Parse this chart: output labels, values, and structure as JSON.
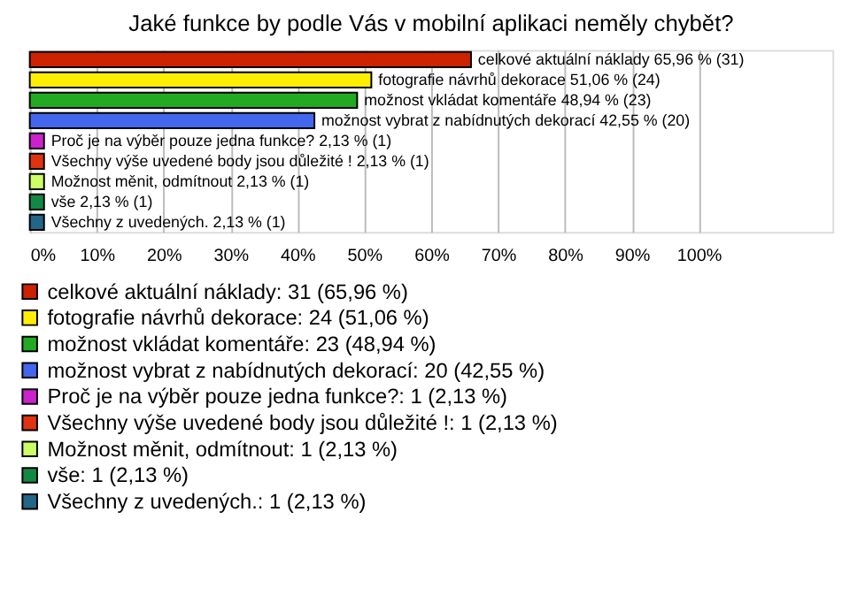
{
  "chart_data": {
    "type": "bar",
    "orientation": "horizontal",
    "title": "Jaké funkce by podle Vás v mobilní aplikaci neměly chybět?",
    "categories": [
      null,
      null,
      null,
      null,
      null,
      null,
      null,
      null,
      null
    ],
    "series": [
      {
        "name": "celkové aktuální náklady: 31 (65,96 %)",
        "color": "#cc2200",
        "values": [
          65.96,
          null,
          null,
          null,
          null,
          null,
          null,
          null,
          null
        ],
        "value_labels": [
          "celkové aktuální náklady 65,96 % (31)",
          null,
          null,
          null,
          null,
          null,
          null,
          null,
          null
        ]
      },
      {
        "name": "fotografie návrhů dekorace: 24 (51,06 %)",
        "color": "#ffee00",
        "values": [
          null,
          51.06,
          null,
          null,
          null,
          null,
          null,
          null,
          null
        ],
        "value_labels": [
          null,
          "fotografie návrhů dekorace 51,06 % (24)",
          null,
          null,
          null,
          null,
          null,
          null,
          null
        ]
      },
      {
        "name": "možnost vkládat komentáře: 23 (48,94 %)",
        "color": "#22aa22",
        "values": [
          null,
          null,
          48.94,
          null,
          null,
          null,
          null,
          null,
          null
        ],
        "value_labels": [
          null,
          null,
          "možnost vkládat komentáře 48,94 % (23)",
          null,
          null,
          null,
          null,
          null,
          null
        ]
      },
      {
        "name": "možnost vybrat z nabídnutých dekorací: 20 (42,55 %)",
        "color": "#4466ee",
        "values": [
          null,
          null,
          null,
          42.55,
          null,
          null,
          null,
          null,
          null
        ],
        "value_labels": [
          null,
          null,
          null,
          "možnost vybrat z nabídnutých dekorací 42,55 % (20)",
          null,
          null,
          null,
          null,
          null
        ]
      },
      {
        "name": "Proč je na výběr pouze jedna funkce?: 1 (2,13 %)",
        "color": "#cc22cc",
        "values": [
          null,
          null,
          null,
          null,
          2.13,
          null,
          null,
          null,
          null
        ],
        "value_labels": [
          null,
          null,
          null,
          null,
          "Proč je na výběr pouze jedna funkce? 2,13 % (1)",
          null,
          null,
          null,
          null
        ]
      },
      {
        "name": "Všechny výše uvedené body jsou důležité !: 1 (2,13 %)",
        "color": "#dd3311",
        "values": [
          null,
          null,
          null,
          null,
          null,
          2.13,
          null,
          null,
          null
        ],
        "value_labels": [
          null,
          null,
          null,
          null,
          null,
          "Všechny výše uvedené body jsou důležité ! 2,13 % (1)",
          null,
          null,
          null
        ]
      },
      {
        "name": "Možnost měnit, odmítnout: 1 (2,13 %)",
        "color": "#ccff66",
        "values": [
          null,
          null,
          null,
          null,
          null,
          null,
          2.13,
          null,
          null
        ],
        "value_labels": [
          null,
          null,
          null,
          null,
          null,
          null,
          "Možnost měnit, odmítnout 2,13 % (1)",
          null,
          null
        ]
      },
      {
        "name": "vše: 1 (2,13 %)",
        "color": "#118844",
        "values": [
          null,
          null,
          null,
          null,
          null,
          null,
          null,
          2.13,
          null
        ],
        "value_labels": [
          null,
          null,
          null,
          null,
          null,
          null,
          null,
          "vše 2,13 % (1)",
          null
        ]
      },
      {
        "name": "Všechny z uvedených.: 1 (2,13 %)",
        "color": "#226688",
        "values": [
          null,
          null,
          null,
          null,
          null,
          null,
          null,
          null,
          2.13
        ],
        "value_labels": [
          null,
          null,
          null,
          null,
          null,
          null,
          null,
          null,
          "Všechny z uvedených. 2,13 % (1)"
        ]
      }
    ],
    "xlim": [
      0,
      120
    ],
    "xticks": [
      {
        "value": 0,
        "label": "0%"
      },
      {
        "value": 10,
        "label": "10%"
      },
      {
        "value": 20,
        "label": "20%"
      },
      {
        "value": 30,
        "label": "30%"
      },
      {
        "value": 40,
        "label": "40%"
      },
      {
        "value": 50,
        "label": "50%"
      },
      {
        "value": 60,
        "label": "60%"
      },
      {
        "value": 70,
        "label": "70%"
      },
      {
        "value": 80,
        "label": "80%"
      },
      {
        "value": 90,
        "label": "90%"
      },
      {
        "value": 100,
        "label": "100%"
      }
    ],
    "grid": "x",
    "legend": "bottom",
    "tick_labels": "x"
  }
}
